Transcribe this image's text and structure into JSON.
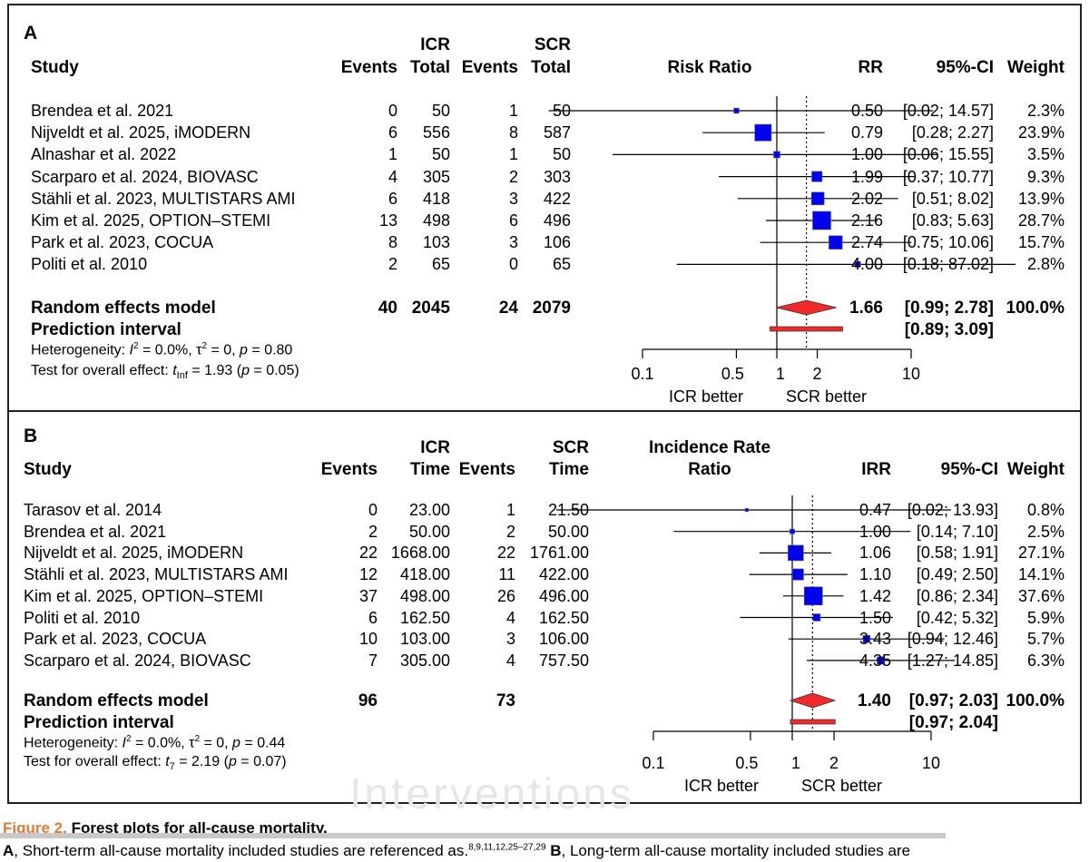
{
  "figure": {
    "label": "Figure 2.",
    "title": "Forest plots for all-cause mortality.",
    "caption_a": "A",
    "caption_text_1": ", Short-term all-cause mortality included studies are referenced as.",
    "caption_refs": "8,9,11,12,25–27,29",
    "caption_b": "B",
    "caption_text_2": ", Long-term all-cause mortality included studies are",
    "watermark": "Interventions"
  },
  "chart_data": [
    {
      "type": "forest",
      "panel": "A",
      "measure": "Risk Ratio",
      "columns": {
        "study": "Study",
        "group1": "ICR",
        "group2": "SCR",
        "events": "Events",
        "total": "Total",
        "effect": "RR",
        "ci": "95%-CI",
        "weight": "Weight"
      },
      "x_scale": "log",
      "xlim": [
        0.05,
        20
      ],
      "ticks": [
        "0.1",
        "0.5",
        "1",
        "2",
        "10"
      ],
      "tick_values": [
        0.1,
        0.5,
        1,
        2,
        10
      ],
      "null_value": 1,
      "favours": [
        "ICR better",
        "SCR better"
      ],
      "studies": [
        {
          "name": "Brendea et al. 2021",
          "e1": "0",
          "n1": "50",
          "e2": "1",
          "n2": "50",
          "est": 0.5,
          "lo": 0.02,
          "hi": 14.57,
          "rr": "0.50",
          "ci": "[0.02; 14.57]",
          "weight": "2.3%",
          "w": 2.3
        },
        {
          "name": "Nijveldt et al. 2025, iMODERN",
          "e1": "6",
          "n1": "556",
          "e2": "8",
          "n2": "587",
          "est": 0.79,
          "lo": 0.28,
          "hi": 2.27,
          "rr": "0.79",
          "ci": "[0.28; 2.27]",
          "weight": "23.9%",
          "w": 23.9
        },
        {
          "name": "Alnashar et al. 2022",
          "e1": "1",
          "n1": "50",
          "e2": "1",
          "n2": "50",
          "est": 1.0,
          "lo": 0.06,
          "hi": 15.55,
          "rr": "1.00",
          "ci": "[0.06; 15.55]",
          "weight": "3.5%",
          "w": 3.5
        },
        {
          "name": "Scarparo et al. 2024, BIOVASC",
          "e1": "4",
          "n1": "305",
          "e2": "2",
          "n2": "303",
          "est": 1.99,
          "lo": 0.37,
          "hi": 10.77,
          "rr": "1.99",
          "ci": "[0.37; 10.77]",
          "weight": "9.3%",
          "w": 9.3
        },
        {
          "name": "Stähli et al. 2023, MULTISTARS AMI",
          "e1": "6",
          "n1": "418",
          "e2": "3",
          "n2": "422",
          "est": 2.02,
          "lo": 0.51,
          "hi": 8.02,
          "rr": "2.02",
          "ci": "[0.51; 8.02]",
          "weight": "13.9%",
          "w": 13.9
        },
        {
          "name": "Kim et al. 2025, OPTION–STEMI",
          "e1": "13",
          "n1": "498",
          "e2": "6",
          "n2": "496",
          "est": 2.16,
          "lo": 0.83,
          "hi": 5.63,
          "rr": "2.16",
          "ci": "[0.83; 5.63]",
          "weight": "28.7%",
          "w": 28.7
        },
        {
          "name": "Park et al. 2023, COCUA",
          "e1": "8",
          "n1": "103",
          "e2": "3",
          "n2": "106",
          "est": 2.74,
          "lo": 0.75,
          "hi": 10.06,
          "rr": "2.74",
          "ci": "[0.75; 10.06]",
          "weight": "15.7%",
          "w": 15.7
        },
        {
          "name": "Politi et al. 2010",
          "e1": "2",
          "n1": "65",
          "e2": "0",
          "n2": "65",
          "est": 4.0,
          "lo": 0.18,
          "hi": 87.02,
          "rr": "4.00",
          "ci": "[0.18; 87.02]",
          "weight": "2.8%",
          "w": 2.8
        }
      ],
      "pooled": {
        "label": "Random effects model",
        "e1": "40",
        "n1": "2045",
        "e2": "24",
        "n2": "2079",
        "est": 1.66,
        "lo": 0.99,
        "hi": 2.78,
        "rr": "1.66",
        "ci": "[0.99; 2.78]",
        "weight": "100.0%"
      },
      "prediction": {
        "label": "Prediction interval",
        "lo": 0.89,
        "hi": 3.09,
        "ci": "[0.89; 3.09]"
      },
      "heterogeneity": {
        "prefix": "Heterogeneity: ",
        "i2_symbol": "I",
        "i2_value": " = 0.0%, ",
        "tau_symbol": "τ",
        "tau_value": " = 0, ",
        "p_symbol": "p",
        "p_value": " = 0.80"
      },
      "overall_test": {
        "prefix": "Test for overall effect: ",
        "stat": "t",
        "stat_sub": "Inf",
        "value": " = 1.93 (",
        "p_symbol": "p",
        "p_value": " = 0.05)"
      }
    },
    {
      "type": "forest",
      "panel": "B",
      "measure_line1": "Incidence Rate",
      "measure_line2": "Ratio",
      "columns": {
        "study": "Study",
        "group1": "ICR",
        "group2": "SCR",
        "events": "Events",
        "time": "Time",
        "effect": "IRR",
        "ci": "95%-CI",
        "weight": "Weight"
      },
      "x_scale": "log",
      "xlim": [
        0.05,
        20
      ],
      "ticks": [
        "0.1",
        "0.5",
        "1",
        "2",
        "10"
      ],
      "tick_values": [
        0.1,
        0.5,
        1,
        2,
        10
      ],
      "null_value": 1,
      "favours": [
        "ICR better",
        "SCR better"
      ],
      "studies": [
        {
          "name": "Tarasov et al. 2014",
          "e1": "0",
          "t1": "23.00",
          "e2": "1",
          "t2": "21.50",
          "est": 0.47,
          "lo": 0.02,
          "hi": 13.93,
          "rr": "0.47",
          "ci": "[0.02; 13.93]",
          "weight": "0.8%",
          "w": 0.8
        },
        {
          "name": "Brendea et al. 2021",
          "e1": "2",
          "t1": "50.00",
          "e2": "2",
          "t2": "50.00",
          "est": 1.0,
          "lo": 0.14,
          "hi": 7.1,
          "rr": "1.00",
          "ci": "[0.14; 7.10]",
          "weight": "2.5%",
          "w": 2.5
        },
        {
          "name": "Nijveldt et al. 2025, iMODERN",
          "e1": "22",
          "t1": "1668.00",
          "e2": "22",
          "t2": "1761.00",
          "est": 1.06,
          "lo": 0.58,
          "hi": 1.91,
          "rr": "1.06",
          "ci": "[0.58; 1.91]",
          "weight": "27.1%",
          "w": 27.1
        },
        {
          "name": "Stähli et al. 2023, MULTISTARS AMI",
          "e1": "12",
          "t1": "418.00",
          "e2": "11",
          "t2": "422.00",
          "est": 1.1,
          "lo": 0.49,
          "hi": 2.5,
          "rr": "1.10",
          "ci": "[0.49; 2.50]",
          "weight": "14.1%",
          "w": 14.1
        },
        {
          "name": "Kim et al. 2025, OPTION–STEMI",
          "e1": "37",
          "t1": "498.00",
          "e2": "26",
          "t2": "496.00",
          "est": 1.42,
          "lo": 0.86,
          "hi": 2.34,
          "rr": "1.42",
          "ci": "[0.86; 2.34]",
          "weight": "37.6%",
          "w": 37.6
        },
        {
          "name": "Politi et al. 2010",
          "e1": "6",
          "t1": "162.50",
          "e2": "4",
          "t2": "162.50",
          "est": 1.5,
          "lo": 0.42,
          "hi": 5.32,
          "rr": "1.50",
          "ci": "[0.42; 5.32]",
          "weight": "5.9%",
          "w": 5.9
        },
        {
          "name": "Park et al. 2023, COCUA",
          "e1": "10",
          "t1": "103.00",
          "e2": "3",
          "t2": "106.00",
          "est": 3.43,
          "lo": 0.94,
          "hi": 12.46,
          "rr": "3.43",
          "ci": "[0.94; 12.46]",
          "weight": "5.7%",
          "w": 5.7
        },
        {
          "name": "Scarparo et al. 2024, BIOVASC",
          "e1": "7",
          "t1": "305.00",
          "e2": "4",
          "t2": "757.50",
          "est": 4.35,
          "lo": 1.27,
          "hi": 14.85,
          "rr": "4.35",
          "ci": "[1.27; 14.85]",
          "weight": "6.3%",
          "w": 6.3
        }
      ],
      "pooled": {
        "label": "Random effects model",
        "e1": "96",
        "e2": "73",
        "est": 1.4,
        "lo": 0.97,
        "hi": 2.03,
        "rr": "1.40",
        "ci": "[0.97; 2.03]",
        "weight": "100.0%"
      },
      "prediction": {
        "label": "Prediction interval",
        "lo": 0.97,
        "hi": 2.04,
        "ci": "[0.97; 2.04]"
      },
      "heterogeneity": {
        "prefix": "Heterogeneity: ",
        "i2_symbol": "I",
        "i2_value": " = 0.0%, ",
        "tau_symbol": "τ",
        "tau_value": " = 0, ",
        "p_symbol": "p",
        "p_value": " = 0.44"
      },
      "overall_test": {
        "prefix": "Test for overall effect: ",
        "stat": "t",
        "stat_sub": "7",
        "value": " = 2.19 (",
        "p_symbol": "p",
        "p_value": " = 0.07)"
      }
    }
  ]
}
